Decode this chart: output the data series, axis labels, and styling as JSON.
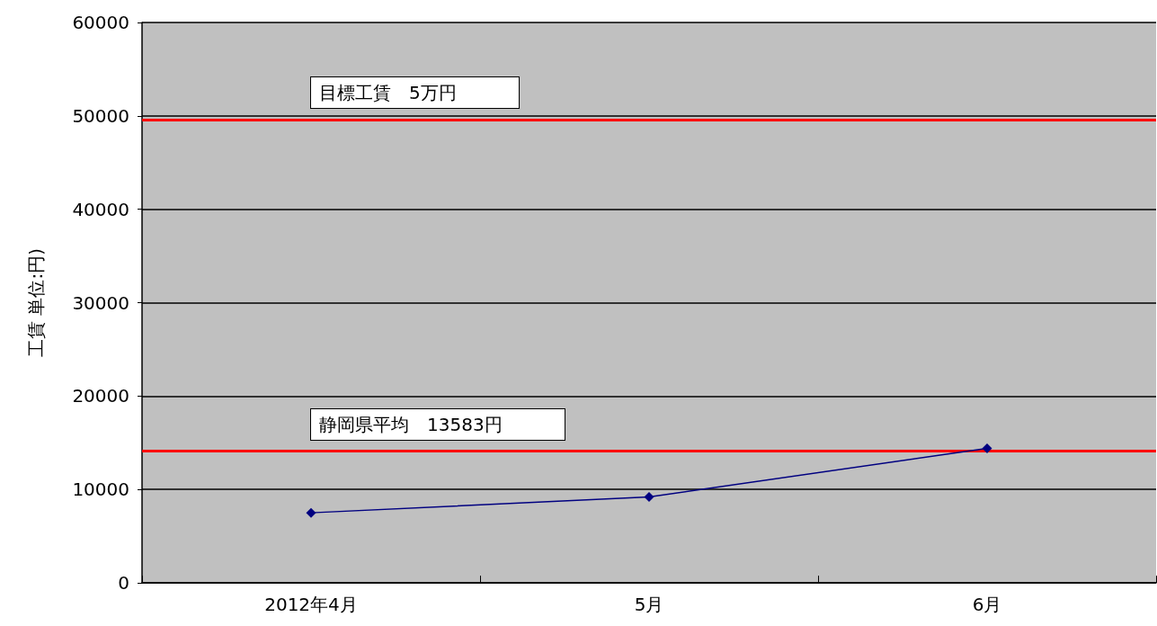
{
  "chart_data": {
    "type": "line",
    "ylabel": "工賃 単位:円)",
    "categories": [
      "2012年4月",
      "5月",
      "6月"
    ],
    "series": [
      {
        "color": "#000080",
        "values": [
          7500,
          9200,
          14400
        ]
      }
    ],
    "ylim": [
      0,
      60000
    ],
    "yticks": [
      0,
      10000,
      20000,
      30000,
      40000,
      50000,
      60000
    ],
    "grid": "y",
    "marker": "diamond",
    "line_style": "solid",
    "ref_lines": [
      {
        "axis": "y",
        "value": 49600,
        "label": "目標工賃　5万円",
        "color": "#ff0000"
      },
      {
        "axis": "y",
        "value": 14100,
        "label": "静岡県平均　13583円",
        "color": "#ff0000"
      }
    ]
  }
}
